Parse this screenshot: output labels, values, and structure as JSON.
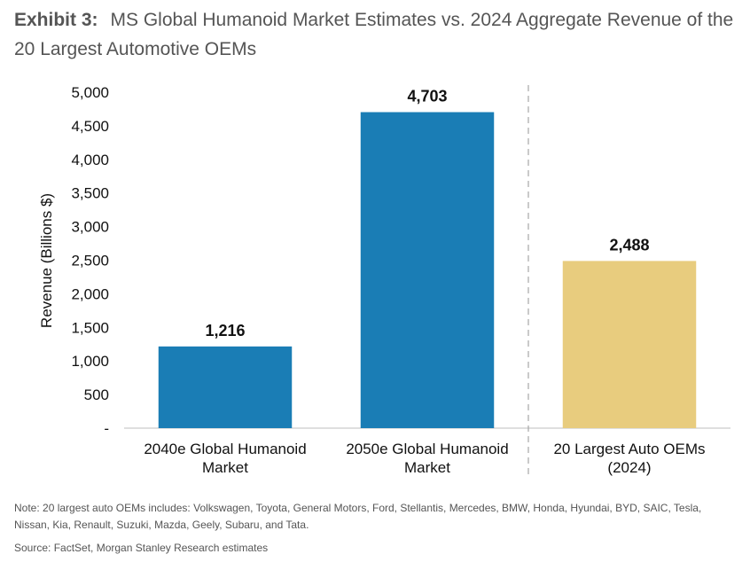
{
  "header": {
    "exhibit_label": "Exhibit 3:",
    "title": "MS Global Humanoid Market Estimates vs. 2024 Aggregate Revenue of the 20 Largest Automotive OEMs"
  },
  "chart_data": {
    "type": "bar",
    "categories": [
      [
        "2040e Global Humanoid",
        "Market"
      ],
      [
        "2050e Global Humanoid",
        "Market"
      ],
      [
        "20 Largest Auto OEMs",
        "(2024)"
      ]
    ],
    "values": [
      1216,
      4703,
      2488
    ],
    "data_labels": [
      "1,216",
      "4,703",
      "2,488"
    ],
    "bar_colors": [
      "#1a7db5",
      "#1a7db5",
      "#e8cc7e"
    ],
    "ylabel": "Revenue (Billions $)",
    "ylim": [
      0,
      5000
    ],
    "yticks": [
      {
        "value": 0,
        "label": "-"
      },
      {
        "value": 500,
        "label": "500"
      },
      {
        "value": 1000,
        "label": "1,000"
      },
      {
        "value": 1500,
        "label": "1,500"
      },
      {
        "value": 2000,
        "label": "2,000"
      },
      {
        "value": 2500,
        "label": "2,500"
      },
      {
        "value": 3000,
        "label": "3,000"
      },
      {
        "value": 3500,
        "label": "3,500"
      },
      {
        "value": 4000,
        "label": "4,000"
      },
      {
        "value": 4500,
        "label": "4,500"
      },
      {
        "value": 5000,
        "label": "5,000"
      }
    ],
    "separator_after_category": 1,
    "grid": false
  },
  "footer": {
    "note": "Note: 20 largest auto OEMs includes: Volkswagen, Toyota, General Motors, Ford, Stellantis, Mercedes, BMW, Honda, Hyundai, BYD, SAIC, Tesla, Nissan, Kia, Renault, Suzuki, Mazda, Geely, Subaru, and Tata.",
    "source": "Source: FactSet, Morgan Stanley Research estimates"
  }
}
